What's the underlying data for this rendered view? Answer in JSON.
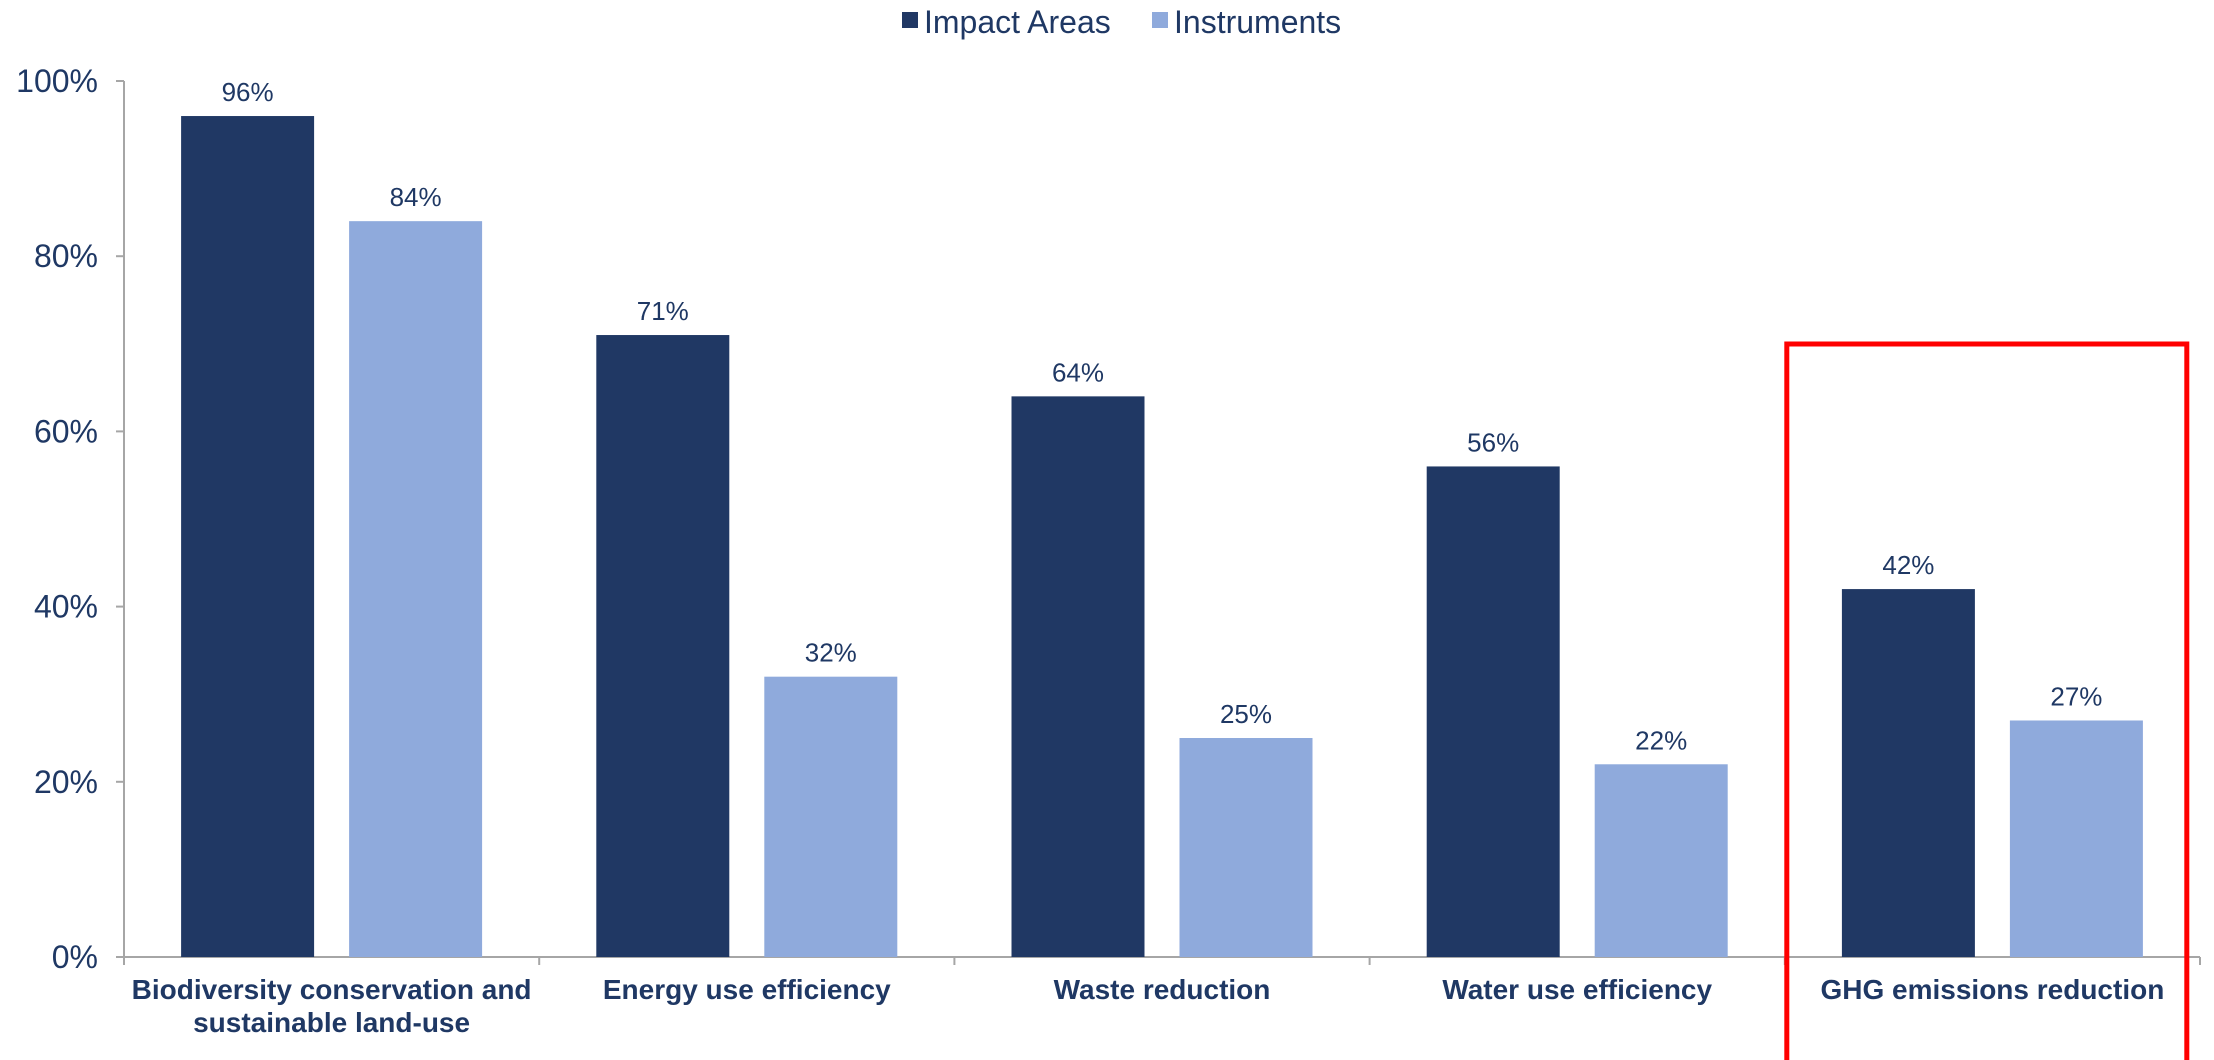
{
  "chart_data": {
    "type": "bar",
    "categories": [
      [
        "Biodiversity conservation and",
        "sustainable land-use"
      ],
      [
        "Energy use efficiency"
      ],
      [
        "Waste reduction"
      ],
      [
        "Water use efficiency"
      ],
      [
        "GHG emissions reduction"
      ]
    ],
    "series": [
      {
        "name": "Impact Areas",
        "color": "#203864",
        "values": [
          96,
          71,
          64,
          56,
          42
        ],
        "labels": [
          "96%",
          "71%",
          "64%",
          "56%",
          "42%"
        ]
      },
      {
        "name": "Instruments",
        "color": "#8faadc",
        "values": [
          84,
          32,
          25,
          22,
          27
        ],
        "labels": [
          "84%",
          "32%",
          "25%",
          "22%",
          "27%"
        ]
      }
    ],
    "ylim": [
      0,
      100
    ],
    "yticks": [
      0,
      20,
      40,
      60,
      80,
      100
    ],
    "ytick_labels": [
      "0%",
      "20%",
      "40%",
      "60%",
      "80%",
      "100%"
    ],
    "legend_position": "top-center",
    "grid": false,
    "highlight": {
      "category_index": 4,
      "color": "#ff0000"
    }
  }
}
